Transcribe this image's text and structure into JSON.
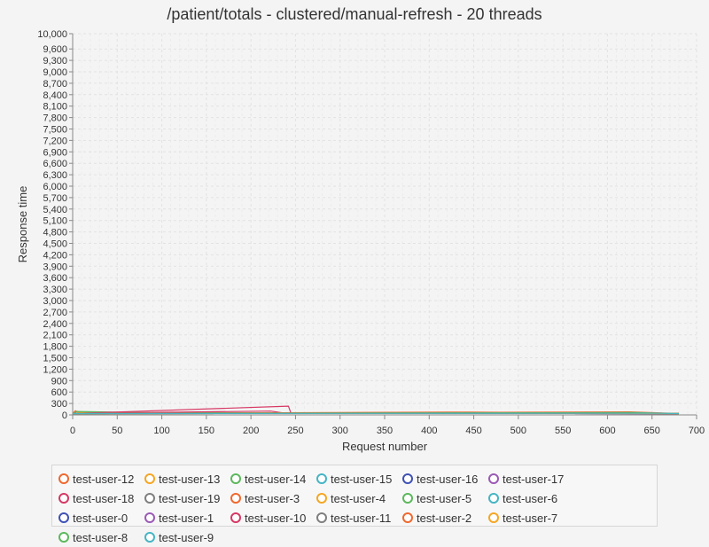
{
  "chart_data": {
    "type": "line",
    "title": "/patient/totals - clustered/manual-refresh - 20 threads",
    "xlabel": "Request number",
    "ylabel": "Response time",
    "xlim": [
      0,
      700
    ],
    "ylim": [
      0,
      10000
    ],
    "x_ticks": [
      0,
      50,
      100,
      150,
      200,
      250,
      300,
      350,
      400,
      450,
      500,
      550,
      600,
      650,
      700
    ],
    "x_tick_labels": [
      "0",
      "50",
      "100",
      "150",
      "200",
      "250",
      "300",
      "350",
      "400",
      "450",
      "500",
      "550",
      "600",
      "650",
      "700"
    ],
    "y_ticks": [
      0,
      300,
      600,
      900,
      1200,
      1500,
      1800,
      2100,
      2400,
      2700,
      3000,
      3300,
      3600,
      3900,
      4200,
      4500,
      4800,
      5100,
      5400,
      5700,
      6000,
      6300,
      6600,
      6900,
      7200,
      7500,
      7800,
      8100,
      8400,
      8700,
      9000,
      9300,
      9600,
      10000
    ],
    "y_tick_labels": [
      "0",
      "300",
      "600",
      "900",
      "1,200",
      "1,500",
      "1,800",
      "2,100",
      "2,400",
      "2,700",
      "3,000",
      "3,300",
      "3,600",
      "3,900",
      "4,200",
      "4,500",
      "4,800",
      "5,100",
      "5,400",
      "5,700",
      "6,000",
      "6,300",
      "6,600",
      "6,900",
      "7,200",
      "7,500",
      "7,800",
      "8,100",
      "8,400",
      "8,700",
      "9,000",
      "9,300",
      "9,600",
      "10,000"
    ],
    "grid": true,
    "legend_position": "bottom",
    "series": [
      {
        "name": "test-user-12",
        "color": "#f0682e",
        "points": [
          [
            0,
            40
          ],
          [
            3,
            110
          ],
          [
            8,
            60
          ],
          [
            20,
            45
          ],
          [
            680,
            40
          ]
        ]
      },
      {
        "name": "test-user-13",
        "color": "#f5a623",
        "points": [
          [
            0,
            35
          ],
          [
            10,
            70
          ],
          [
            60,
            40
          ],
          [
            680,
            35
          ]
        ]
      },
      {
        "name": "test-user-14",
        "color": "#5cb85c",
        "points": [
          [
            0,
            35
          ],
          [
            5,
            90
          ],
          [
            75,
            60
          ],
          [
            680,
            35
          ]
        ]
      },
      {
        "name": "test-user-15",
        "color": "#45b5c4",
        "points": [
          [
            0,
            35
          ],
          [
            30,
            55
          ],
          [
            100,
            45
          ],
          [
            680,
            35
          ]
        ]
      },
      {
        "name": "test-user-16",
        "color": "#3f51b5",
        "points": [
          [
            0,
            35
          ],
          [
            120,
            45
          ],
          [
            680,
            35
          ]
        ]
      },
      {
        "name": "test-user-17",
        "color": "#9b59b6",
        "points": [
          [
            0,
            35
          ],
          [
            200,
            45
          ],
          [
            680,
            35
          ]
        ]
      },
      {
        "name": "test-user-18",
        "color": "#d63864",
        "points": [
          [
            0,
            40
          ],
          [
            222,
            100
          ],
          [
            240,
            40
          ],
          [
            680,
            40
          ]
        ]
      },
      {
        "name": "test-user-19",
        "color": "#7f7f7f",
        "points": [
          [
            0,
            35
          ],
          [
            300,
            45
          ],
          [
            680,
            35
          ]
        ]
      },
      {
        "name": "test-user-3",
        "color": "#f0682e",
        "points": [
          [
            0,
            35
          ],
          [
            445,
            75
          ],
          [
            680,
            35
          ]
        ]
      },
      {
        "name": "test-user-4",
        "color": "#f5a623",
        "points": [
          [
            0,
            35
          ],
          [
            500,
            45
          ],
          [
            680,
            35
          ]
        ]
      },
      {
        "name": "test-user-5",
        "color": "#5cb85c",
        "points": [
          [
            0,
            35
          ],
          [
            550,
            45
          ],
          [
            680,
            35
          ]
        ]
      },
      {
        "name": "test-user-6",
        "color": "#45b5c4",
        "points": [
          [
            0,
            35
          ],
          [
            400,
            45
          ],
          [
            680,
            35
          ]
        ]
      },
      {
        "name": "test-user-0",
        "color": "#3f51b5",
        "points": [
          [
            0,
            35
          ],
          [
            350,
            45
          ],
          [
            680,
            35
          ]
        ]
      },
      {
        "name": "test-user-1",
        "color": "#9b59b6",
        "points": [
          [
            0,
            35
          ],
          [
            600,
            45
          ],
          [
            680,
            35
          ]
        ]
      },
      {
        "name": "test-user-10",
        "color": "#d63864",
        "points": [
          [
            0,
            35
          ],
          [
            242,
            230
          ],
          [
            245,
            40
          ],
          [
            680,
            35
          ]
        ]
      },
      {
        "name": "test-user-11",
        "color": "#7f7f7f",
        "points": [
          [
            0,
            35
          ],
          [
            650,
            45
          ],
          [
            680,
            35
          ]
        ]
      },
      {
        "name": "test-user-2",
        "color": "#f0682e",
        "points": [
          [
            0,
            35
          ],
          [
            625,
            80
          ],
          [
            680,
            35
          ]
        ]
      },
      {
        "name": "test-user-7",
        "color": "#f5a623",
        "points": [
          [
            0,
            35
          ],
          [
            575,
            45
          ],
          [
            680,
            35
          ]
        ]
      },
      {
        "name": "test-user-8",
        "color": "#5cb85c",
        "points": [
          [
            0,
            35
          ],
          [
            630,
            60
          ],
          [
            680,
            35
          ]
        ]
      },
      {
        "name": "test-user-9",
        "color": "#45b5c4",
        "points": [
          [
            0,
            35
          ],
          [
            660,
            45
          ],
          [
            680,
            35
          ]
        ]
      }
    ]
  }
}
